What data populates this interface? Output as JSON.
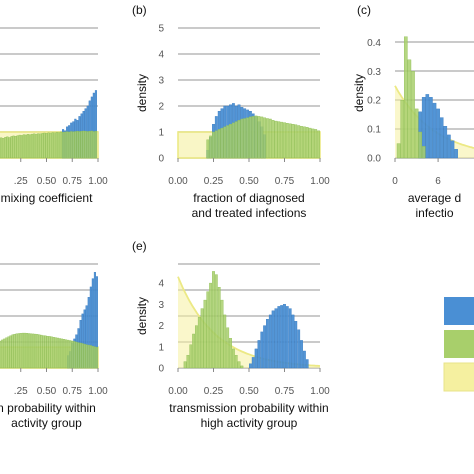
{
  "colors": {
    "posterior": "#4a8fd4",
    "prior": "#a8cf6b",
    "yellow": "#f5f0a0",
    "yellow_line": "#ece985",
    "grid": "#b8b8b8"
  },
  "legend": {
    "entries": [
      "",
      "",
      ""
    ],
    "colors": [
      "#4a8fd4",
      "#a8cf6b",
      "#f5f0a0"
    ]
  },
  "chart_data": [
    {
      "id": "a",
      "panel_label": "",
      "type": "bar",
      "xlabel": "mixing coefficient",
      "ylabel": "",
      "x_tick_labels": [
        ".25",
        "0.50",
        "0.75",
        "1.00"
      ],
      "x_tick_values": [
        0.25,
        0.5,
        0.75,
        1.0
      ],
      "xlim": [
        0,
        1
      ],
      "ylim": [
        0,
        5
      ],
      "prior_uniform": 1.0,
      "series": [
        {
          "name": "",
          "color": "posterior",
          "x": [
            0.66,
            0.68,
            0.7,
            0.72,
            0.74,
            0.76,
            0.78,
            0.8,
            0.82,
            0.84,
            0.86,
            0.88,
            0.9,
            0.92,
            0.94,
            0.96,
            0.98
          ],
          "values": [
            1.1,
            1.05,
            1.2,
            1.25,
            1.35,
            1.4,
            1.5,
            1.45,
            1.6,
            1.7,
            1.8,
            1.9,
            2.0,
            2.2,
            2.35,
            2.5,
            2.6
          ]
        },
        {
          "name": "",
          "color": "prior",
          "x": [
            0.02,
            0.04,
            0.06,
            0.08,
            0.1,
            0.12,
            0.14,
            0.16,
            0.18,
            0.2,
            0.22,
            0.24,
            0.26,
            0.28,
            0.3,
            0.32,
            0.34,
            0.36,
            0.38,
            0.4,
            0.42,
            0.44,
            0.46,
            0.48,
            0.5,
            0.52,
            0.54,
            0.56,
            0.58,
            0.6,
            0.62,
            0.64,
            0.66,
            0.68,
            0.7,
            0.72,
            0.74,
            0.76,
            0.78,
            0.8,
            0.82,
            0.84,
            0.86,
            0.88,
            0.9,
            0.92,
            0.94,
            0.96,
            0.98
          ],
          "values": [
            0.72,
            0.75,
            0.78,
            0.76,
            0.8,
            0.82,
            0.79,
            0.83,
            0.85,
            0.84,
            0.86,
            0.88,
            0.87,
            0.9,
            0.89,
            0.91,
            0.9,
            0.92,
            0.93,
            0.92,
            0.94,
            0.93,
            0.95,
            0.96,
            0.95,
            0.97,
            0.96,
            0.98,
            0.97,
            0.99,
            0.98,
            1.0,
            0.99,
            1.0,
            1.01,
            1.0,
            1.02,
            1.01,
            1.02,
            1.03,
            1.02,
            1.03,
            1.04,
            1.03,
            1.02,
            1.03,
            1.04,
            1.02,
            1.03
          ]
        }
      ]
    },
    {
      "id": "b",
      "panel_label": "(b)",
      "type": "bar",
      "xlabel": [
        "fraction of diagnosed",
        "and treated infections"
      ],
      "ylabel": "density",
      "x_tick_labels": [
        "0.00",
        "0.25",
        "0.50",
        "0.75",
        "1.00"
      ],
      "x_tick_values": [
        0,
        0.25,
        0.5,
        0.75,
        1.0
      ],
      "y_tick_labels": [
        "0",
        "1",
        "2",
        "3",
        "4",
        "5"
      ],
      "y_tick_values": [
        0,
        1,
        2,
        3,
        4,
        5
      ],
      "xlim": [
        0,
        1
      ],
      "ylim": [
        0,
        5
      ],
      "prior_uniform": 1.0,
      "series": [
        {
          "name": "",
          "color": "posterior",
          "x": [
            0.21,
            0.23,
            0.25,
            0.27,
            0.29,
            0.31,
            0.33,
            0.35,
            0.37,
            0.39,
            0.41,
            0.43,
            0.45,
            0.47,
            0.49,
            0.51,
            0.53,
            0.55,
            0.57,
            0.59,
            0.61
          ],
          "values": [
            0.3,
            0.8,
            1.3,
            1.6,
            1.8,
            1.9,
            2.0,
            2.0,
            2.05,
            2.1,
            2.0,
            2.05,
            1.95,
            1.9,
            1.85,
            1.8,
            1.7,
            1.6,
            1.4,
            1.2,
            0.9
          ]
        },
        {
          "name": "",
          "color": "prior",
          "x": [
            0.21,
            0.23,
            0.25,
            0.27,
            0.29,
            0.31,
            0.33,
            0.35,
            0.37,
            0.39,
            0.41,
            0.43,
            0.45,
            0.47,
            0.49,
            0.51,
            0.53,
            0.55,
            0.57,
            0.59,
            0.61,
            0.63,
            0.65,
            0.67,
            0.69,
            0.71,
            0.73,
            0.75,
            0.77,
            0.79,
            0.81,
            0.83,
            0.85,
            0.87,
            0.89,
            0.91,
            0.93,
            0.95,
            0.97,
            0.99
          ],
          "values": [
            0.7,
            0.85,
            1.0,
            1.05,
            1.1,
            1.15,
            1.2,
            1.25,
            1.3,
            1.35,
            1.4,
            1.45,
            1.5,
            1.52,
            1.55,
            1.58,
            1.6,
            1.62,
            1.6,
            1.58,
            1.55,
            1.52,
            1.5,
            1.45,
            1.42,
            1.4,
            1.38,
            1.36,
            1.34,
            1.32,
            1.3,
            1.28,
            1.25,
            1.22,
            1.2,
            1.18,
            1.15,
            1.12,
            1.1,
            1.05
          ]
        }
      ]
    },
    {
      "id": "c",
      "panel_label": "(c)",
      "type": "bar",
      "xlabel": [
        "average d",
        "infectio"
      ],
      "ylabel": "density",
      "x_tick_labels": [
        "0",
        "6"
      ],
      "x_tick_values": [
        0,
        6
      ],
      "y_tick_labels": [
        "0.0",
        "0.1",
        "0.2",
        "0.3",
        "0.4"
      ],
      "y_tick_values": [
        0,
        0.1,
        0.2,
        0.3,
        0.4
      ],
      "xlim": [
        0,
        11
      ],
      "ylim": [
        0,
        0.45
      ],
      "prior_exponential": {
        "peak": 0.25,
        "rate": 0.18
      },
      "series": [
        {
          "name": "",
          "color": "posterior",
          "x": [
            3.5,
            4.0,
            4.5,
            5.0,
            5.5,
            6.0,
            6.5,
            7.0,
            7.5,
            8.0,
            8.5
          ],
          "values": [
            0.16,
            0.21,
            0.22,
            0.21,
            0.19,
            0.17,
            0.14,
            0.11,
            0.08,
            0.06,
            0.03
          ]
        },
        {
          "name": "",
          "color": "prior",
          "x": [
            0.5,
            1.0,
            1.5,
            2.0,
            2.5,
            3.0,
            3.5,
            4.0
          ],
          "values": [
            0.05,
            0.2,
            0.42,
            0.34,
            0.3,
            0.17,
            0.09,
            0.04
          ]
        }
      ]
    },
    {
      "id": "d",
      "panel_label": "",
      "type": "bar",
      "xlabel": [
        "n probability within",
        "activity group"
      ],
      "ylabel": "",
      "x_tick_labels": [
        ".25",
        "0.50",
        "0.75",
        "1.00"
      ],
      "x_tick_values": [
        0.25,
        0.5,
        0.75,
        1.0
      ],
      "xlim": [
        0,
        1
      ],
      "ylim": [
        0,
        5
      ],
      "prior_uniform": 1.0,
      "series": [
        {
          "name": "",
          "color": "posterior",
          "x": [
            0.71,
            0.73,
            0.75,
            0.77,
            0.79,
            0.81,
            0.83,
            0.85,
            0.87,
            0.89,
            0.91,
            0.93,
            0.95,
            0.97,
            0.99
          ],
          "values": [
            0.6,
            0.8,
            1.2,
            1.4,
            1.6,
            1.9,
            2.3,
            2.6,
            2.8,
            3.0,
            3.4,
            3.9,
            4.3,
            4.6,
            4.4
          ]
        },
        {
          "name": "",
          "color": "prior",
          "x": [
            0.01,
            0.03,
            0.05,
            0.07,
            0.09,
            0.11,
            0.13,
            0.15,
            0.17,
            0.19,
            0.21,
            0.23,
            0.25,
            0.27,
            0.29,
            0.31,
            0.33,
            0.35,
            0.37,
            0.39,
            0.41,
            0.43,
            0.45,
            0.47,
            0.49,
            0.51,
            0.53,
            0.55,
            0.57,
            0.59,
            0.61,
            0.63,
            0.65,
            0.67,
            0.69,
            0.71,
            0.73,
            0.75,
            0.77,
            0.79,
            0.81,
            0.83,
            0.85,
            0.87,
            0.89,
            0.91,
            0.93,
            0.95,
            0.97,
            0.99
          ],
          "values": [
            1.1,
            1.2,
            1.3,
            1.35,
            1.4,
            1.45,
            1.5,
            1.55,
            1.6,
            1.62,
            1.65,
            1.66,
            1.67,
            1.68,
            1.68,
            1.67,
            1.66,
            1.65,
            1.64,
            1.63,
            1.62,
            1.6,
            1.58,
            1.56,
            1.55,
            1.53,
            1.52,
            1.5,
            1.48,
            1.46,
            1.44,
            1.42,
            1.4,
            1.38,
            1.36,
            1.34,
            1.32,
            1.3,
            1.28,
            1.25,
            1.22,
            1.2,
            1.18,
            1.15,
            1.12,
            1.1,
            1.08,
            1.05,
            1.02,
            1.0
          ]
        }
      ]
    },
    {
      "id": "e",
      "panel_label": "(e)",
      "type": "bar",
      "xlabel": [
        "transmission probability within",
        "high activity group"
      ],
      "ylabel": "density",
      "x_tick_labels": [
        "0.00",
        "0.25",
        "0.50",
        "0.75",
        "1.00"
      ],
      "x_tick_values": [
        0,
        0.25,
        0.5,
        0.75,
        1.0
      ],
      "y_tick_labels": [
        "0",
        "1",
        "2",
        "3",
        "4"
      ],
      "y_tick_values": [
        0,
        1,
        2,
        3,
        4
      ],
      "xlim": [
        0,
        1
      ],
      "ylim": [
        0,
        4.9
      ],
      "prior_exponential": {
        "peak": 4.3,
        "rate": 3.8
      },
      "series": [
        {
          "name": "",
          "color": "posterior",
          "x": [
            0.51,
            0.53,
            0.55,
            0.57,
            0.59,
            0.61,
            0.63,
            0.65,
            0.67,
            0.69,
            0.71,
            0.73,
            0.75,
            0.77,
            0.79,
            0.81,
            0.83,
            0.85,
            0.87,
            0.89,
            0.91
          ],
          "values": [
            0.2,
            0.5,
            0.9,
            1.3,
            1.7,
            2.0,
            2.3,
            2.5,
            2.7,
            2.8,
            2.9,
            2.95,
            3.0,
            2.9,
            2.8,
            2.5,
            2.2,
            1.8,
            1.3,
            0.8,
            0.4
          ]
        },
        {
          "name": "",
          "color": "prior",
          "x": [
            0.05,
            0.07,
            0.09,
            0.11,
            0.13,
            0.15,
            0.17,
            0.19,
            0.21,
            0.23,
            0.25,
            0.27,
            0.29,
            0.31,
            0.33,
            0.35,
            0.37,
            0.39,
            0.41,
            0.43,
            0.45
          ],
          "values": [
            0.3,
            0.6,
            1.1,
            1.6,
            2.0,
            2.4,
            2.8,
            3.2,
            3.6,
            4.0,
            4.55,
            4.4,
            3.8,
            3.2,
            2.5,
            1.9,
            1.4,
            0.9,
            0.6,
            0.3,
            0.1
          ]
        }
      ]
    }
  ]
}
